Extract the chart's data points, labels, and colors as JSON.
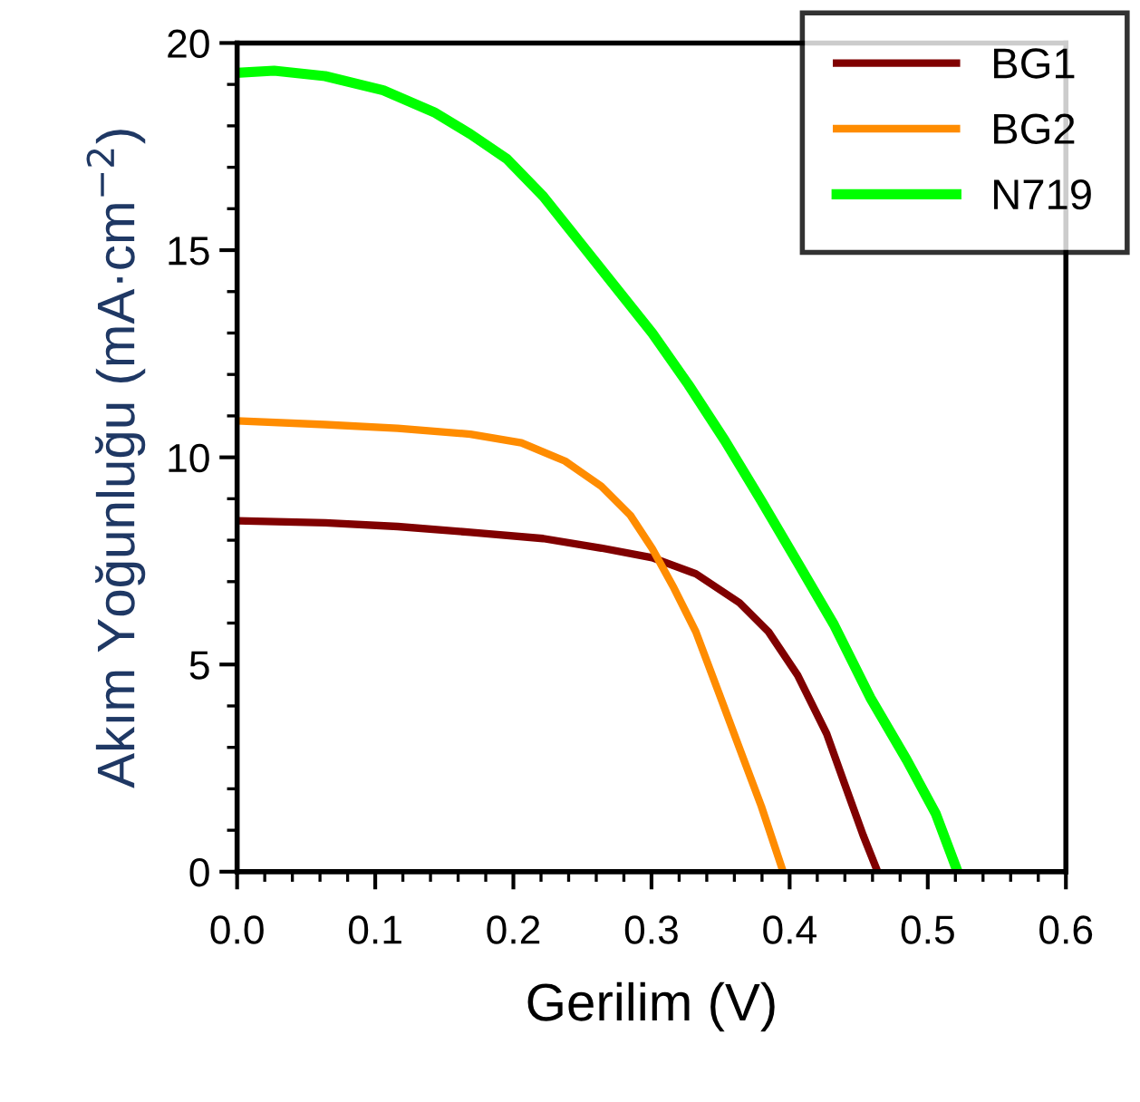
{
  "chart_data": {
    "type": "line",
    "xlabel": "Gerilim (V)",
    "ylabel": "Akım Yoğunluğu (mA·cm$^{−2}$)",
    "xlim": [
      0,
      0.6
    ],
    "xticks": [
      {
        "value": 0,
        "label": "0.0"
      },
      0.1,
      0.2,
      0.3,
      0.4,
      0.5,
      0.6
    ],
    "ylim": [
      0,
      20
    ],
    "yticks": [
      0,
      5,
      10,
      15,
      20
    ],
    "grid": false,
    "legend": "top right",
    "marker": "none",
    "line_style": "solid",
    "series": [
      {
        "name": "BG1",
        "color": "#800000",
        "x": [
          0,
          0.0637,
          0.1163,
          0.1689,
          0.2216,
          0.2637,
          0.3005,
          0.3321,
          0.3637,
          0.3847,
          0.4058,
          0.4268,
          0.44,
          0.4532,
          0.4637
        ],
        "values": [
          8.47,
          8.42,
          8.33,
          8.19,
          8.04,
          7.81,
          7.58,
          7.19,
          6.49,
          5.79,
          4.74,
          3.33,
          2.1,
          0.88,
          0
        ]
      },
      {
        "name": "BG2",
        "color": "#ff8c00",
        "x": [
          0,
          0.0637,
          0.1163,
          0.1689,
          0.2058,
          0.2374,
          0.2637,
          0.2847,
          0.3005,
          0.3163,
          0.3321,
          0.3479,
          0.3637,
          0.3795,
          0.3953
        ],
        "values": [
          10.88,
          10.79,
          10.7,
          10.56,
          10.35,
          9.91,
          9.3,
          8.6,
          7.8,
          6.84,
          5.79,
          4.39,
          2.98,
          1.58,
          0
        ]
      },
      {
        "name": "N719",
        "color": "#00ff00",
        "x": [
          0,
          0.0268,
          0.0637,
          0.1058,
          0.1426,
          0.1689,
          0.1953,
          0.2216,
          0.2479,
          0.2742,
          0.3005,
          0.3268,
          0.3532,
          0.3795,
          0.4058,
          0.4321,
          0.4584,
          0.4847,
          0.5058,
          0.5216
        ],
        "values": [
          19.28,
          19.33,
          19.2,
          18.86,
          18.33,
          17.8,
          17.2,
          16.3,
          15.2,
          14.1,
          13.0,
          11.75,
          10.4,
          8.95,
          7.46,
          5.96,
          4.2,
          2.7,
          1.4,
          0
        ]
      }
    ]
  }
}
